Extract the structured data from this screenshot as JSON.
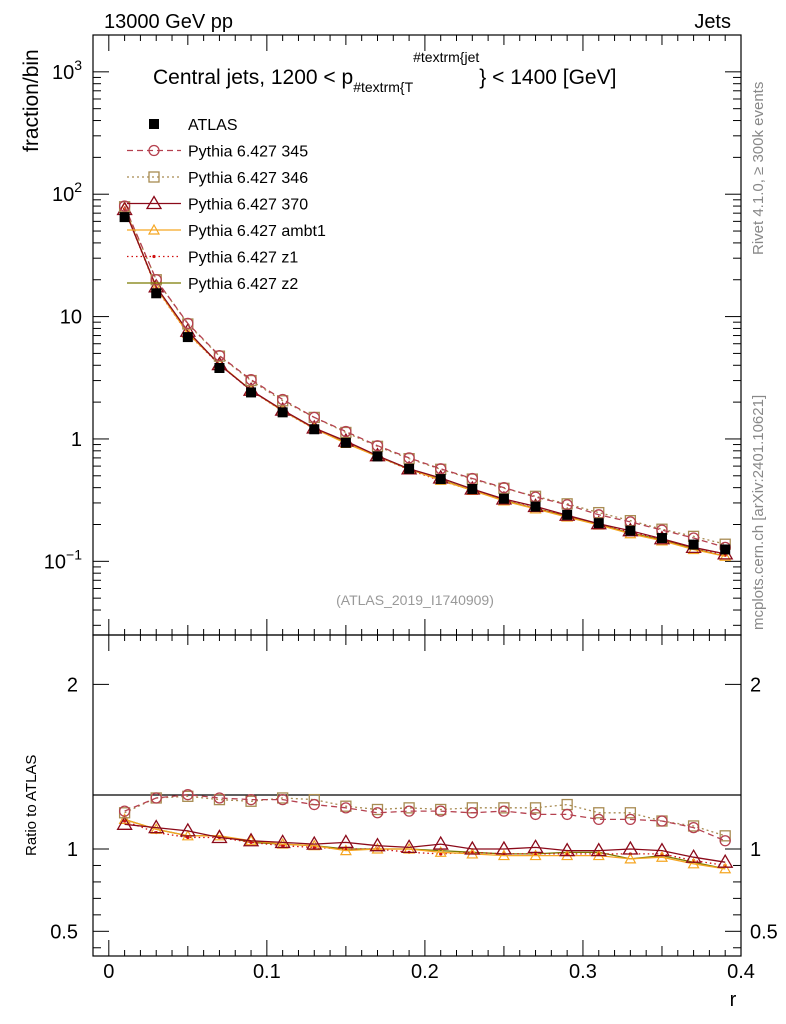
{
  "header": {
    "left": "13000 GeV pp",
    "right": "Jets",
    "side_rivet": "Rivet 4.1.0, ≥ 300k events",
    "side_site": "mcplots.cern.ch [arXiv:2401.10621]"
  },
  "main": {
    "ylabel": "fraction/bin",
    "title_pre": "Central jets, 1200 < p",
    "title_sub": "#textrm{T",
    "title_sup": "#textrm{jet",
    "title_post": "} < 1400 [GeV]",
    "analysis_id": "(ATLAS_2019_I1740909)"
  },
  "ratio": {
    "ylabel": "Ratio to ATLAS"
  },
  "colors": {
    "data": "#000000",
    "p345": "#b5414f",
    "p346": "#a88b52",
    "p370": "#8b0a1a",
    "ambt1": "#f5a623",
    "z1": "#d01010",
    "z2": "#7a7a00"
  },
  "chart_data": [
    {
      "type": "line",
      "title": "Central jets, 1200 < p_T^jet < 1400 [GeV]",
      "xlabel": "r",
      "ylabel": "fraction/bin",
      "yscale": "log",
      "xlim": [
        -0.01,
        0.4
      ],
      "ylim": [
        0.025,
        2000
      ],
      "x_ticks": [
        "0",
        "0.1",
        "0.2",
        "0.3",
        "0.4"
      ],
      "y_ticks": [
        "10^-1",
        "1",
        "10",
        "10^2",
        "10^3"
      ],
      "legend_position": "top-left",
      "x": [
        0.01,
        0.03,
        0.05,
        0.07,
        0.09,
        0.11,
        0.13,
        0.15,
        0.17,
        0.19,
        0.21,
        0.23,
        0.25,
        0.27,
        0.29,
        0.31,
        0.33,
        0.35,
        0.37,
        0.39
      ],
      "series": [
        {
          "name": "ATLAS",
          "style": "data",
          "values": [
            65,
            15.5,
            6.8,
            3.8,
            2.4,
            1.65,
            1.2,
            0.93,
            0.72,
            0.57,
            0.47,
            0.39,
            0.325,
            0.28,
            0.24,
            0.205,
            0.178,
            0.155,
            0.137,
            0.125
          ]
        },
        {
          "name": "Pythia 6.427 345",
          "style": "p345",
          "values": [
            80,
            20,
            8.8,
            4.8,
            3.05,
            2.1,
            1.5,
            1.15,
            0.88,
            0.7,
            0.57,
            0.475,
            0.4,
            0.335,
            0.29,
            0.24,
            0.21,
            0.18,
            0.155,
            0.13
          ]
        },
        {
          "name": "Pythia 6.427 346",
          "style": "p346",
          "values": [
            79,
            20,
            8.7,
            4.75,
            3.0,
            2.05,
            1.5,
            1.13,
            0.87,
            0.69,
            0.565,
            0.47,
            0.395,
            0.34,
            0.295,
            0.25,
            0.215,
            0.183,
            0.16,
            0.138
          ]
        },
        {
          "name": "Pythia 6.427 370",
          "style": "p370",
          "values": [
            75,
            17.5,
            7.6,
            4.05,
            2.5,
            1.72,
            1.23,
            0.96,
            0.73,
            0.57,
            0.48,
            0.39,
            0.323,
            0.281,
            0.238,
            0.203,
            0.178,
            0.153,
            0.13,
            0.115
          ]
        },
        {
          "name": "Pythia 6.427 ambt1",
          "style": "ambt1",
          "values": [
            77,
            17.2,
            7.3,
            4.1,
            2.5,
            1.7,
            1.22,
            0.92,
            0.72,
            0.57,
            0.46,
            0.38,
            0.312,
            0.268,
            0.23,
            0.198,
            0.168,
            0.147,
            0.125,
            0.11
          ]
        },
        {
          "name": "Pythia 6.427 z1",
          "style": "z1",
          "values": [
            76,
            17.0,
            7.25,
            4.05,
            2.48,
            1.69,
            1.21,
            0.93,
            0.72,
            0.56,
            0.455,
            0.382,
            0.315,
            0.272,
            0.234,
            0.2,
            0.173,
            0.151,
            0.128,
            0.112
          ]
        },
        {
          "name": "Pythia 6.427 z2",
          "style": "z2",
          "values": [
            77,
            17.3,
            7.35,
            4.1,
            2.5,
            1.7,
            1.22,
            0.93,
            0.72,
            0.565,
            0.465,
            0.38,
            0.315,
            0.27,
            0.234,
            0.2,
            0.17,
            0.15,
            0.127,
            0.11
          ]
        }
      ]
    },
    {
      "type": "line",
      "title": "Ratio to ATLAS",
      "xlabel": "r",
      "ylabel": "Ratio to ATLAS",
      "xlim": [
        -0.01,
        0.4
      ],
      "ylim": [
        0.35,
        2.3
      ],
      "y_ticks": [
        "0.5",
        "1",
        "2"
      ],
      "x": [
        0.01,
        0.03,
        0.05,
        0.07,
        0.09,
        0.11,
        0.13,
        0.15,
        0.17,
        0.19,
        0.21,
        0.23,
        0.25,
        0.27,
        0.29,
        0.31,
        0.33,
        0.35,
        0.37,
        0.39
      ],
      "series": [
        {
          "name": "Pythia 6.427 345",
          "style": "p345",
          "values": [
            1.23,
            1.31,
            1.33,
            1.31,
            1.3,
            1.3,
            1.27,
            1.25,
            1.22,
            1.23,
            1.23,
            1.22,
            1.23,
            1.21,
            1.21,
            1.18,
            1.18,
            1.17,
            1.13,
            1.05
          ]
        },
        {
          "name": "Pythia 6.427 346",
          "style": "p346",
          "values": [
            1.22,
            1.31,
            1.32,
            1.3,
            1.29,
            1.31,
            1.3,
            1.26,
            1.24,
            1.25,
            1.24,
            1.25,
            1.25,
            1.25,
            1.27,
            1.22,
            1.22,
            1.17,
            1.14,
            1.08
          ]
        },
        {
          "name": "Pythia 6.427 370",
          "style": "p370",
          "values": [
            1.15,
            1.13,
            1.11,
            1.07,
            1.05,
            1.04,
            1.03,
            1.04,
            1.02,
            1.01,
            1.03,
            1.0,
            1.0,
            1.01,
            0.99,
            0.99,
            1.0,
            0.99,
            0.95,
            0.92
          ]
        },
        {
          "name": "Pythia 6.427 ambt1",
          "style": "ambt1",
          "values": [
            1.18,
            1.12,
            1.08,
            1.08,
            1.05,
            1.03,
            1.02,
            0.99,
            1.0,
            1.0,
            0.98,
            0.97,
            0.96,
            0.96,
            0.96,
            0.96,
            0.94,
            0.95,
            0.91,
            0.88
          ]
        },
        {
          "name": "Pythia 6.427 z1",
          "style": "z1",
          "values": [
            1.17,
            1.1,
            1.07,
            1.07,
            1.04,
            1.02,
            1.01,
            1.0,
            1.0,
            0.98,
            0.97,
            0.98,
            0.97,
            0.97,
            0.97,
            0.97,
            0.97,
            0.97,
            0.93,
            0.9
          ]
        },
        {
          "name": "Pythia 6.427 z2",
          "style": "z2",
          "values": [
            1.18,
            1.12,
            1.08,
            1.08,
            1.04,
            1.03,
            1.02,
            1.0,
            1.0,
            1.0,
            0.99,
            0.98,
            0.97,
            0.97,
            0.98,
            0.98,
            0.94,
            0.96,
            0.92,
            0.88
          ]
        }
      ]
    }
  ]
}
